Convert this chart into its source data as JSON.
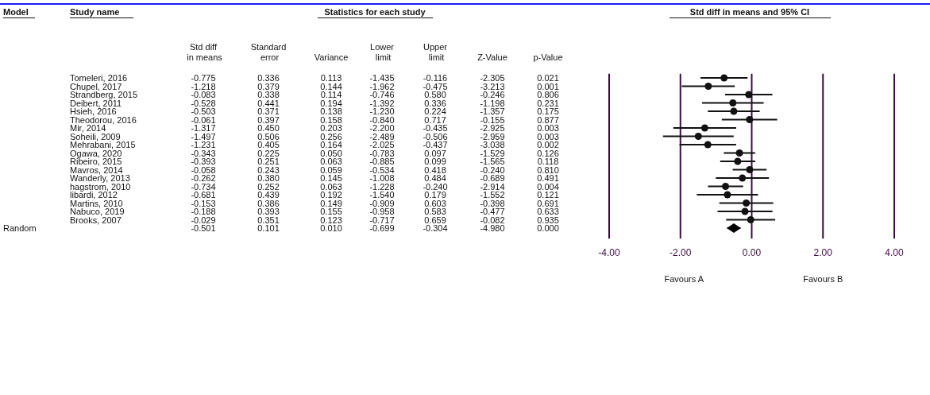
{
  "chart_data": [
    {
      "type": "heatmap",
      "title": "Statistics for each study",
      "annotations": [
        "Model",
        "Study name",
        "Random"
      ],
      "categories": [
        "Std diff in means",
        "Standard error",
        "Variance",
        "Lower limit",
        "Upper limit",
        "Z-Value",
        "p-Value"
      ],
      "y_categories": [
        "Tomeleri, 2016",
        "Chupel, 2017",
        "Strandberg, 2015",
        "Deibert, 2011",
        "Hsieh, 2016",
        "Theodorou, 2016",
        "Mir, 2014",
        "Soheili, 2009",
        "Mehrabani, 2015",
        "Ogawa, 2020",
        "Ribeiro, 2015",
        "Mavros, 2014",
        "Wanderly, 2013",
        "hagstrom, 2010",
        "libardi, 2012",
        "Martins, 2010",
        "Nabuco, 2019",
        "Brooks, 2007",
        null
      ],
      "cell_labels": [
        [
          "-0.775",
          "0.336",
          "0.113",
          "-1.435",
          "-0.116",
          "-2.305",
          "0.021"
        ],
        [
          "-1.218",
          "0.379",
          "0.144",
          "-1.962",
          "-0.475",
          "-3.213",
          "0.001"
        ],
        [
          "-0.083",
          "0.338",
          "0.114",
          "-0.746",
          "0.580",
          "-0.246",
          "0.806"
        ],
        [
          "-0.528",
          "0.441",
          "0.194",
          "-1.392",
          "0.336",
          "-1.198",
          "0.231"
        ],
        [
          "-0.503",
          "0.371",
          "0.138",
          "-1.230",
          "0.224",
          "-1.357",
          "0.175"
        ],
        [
          "-0.061",
          "0.397",
          "0.158",
          "-0.840",
          "0.717",
          "-0.155",
          "0.877"
        ],
        [
          "-1.317",
          "0.450",
          "0.203",
          "-2.200",
          "-0.435",
          "-2.925",
          "0.003"
        ],
        [
          "-1.497",
          "0.506",
          "0.256",
          "-2.489",
          "-0.506",
          "-2.959",
          "0.003"
        ],
        [
          "-1.231",
          "0.405",
          "0.164",
          "-2.025",
          "-0.437",
          "-3.038",
          "0.002"
        ],
        [
          "-0.343",
          "0.225",
          "0.050",
          "-0.783",
          "0.097",
          "-1.529",
          "0.126"
        ],
        [
          "-0.393",
          "0.251",
          "0.063",
          "-0.885",
          "0.099",
          "-1.565",
          "0.118"
        ],
        [
          "-0.058",
          "0.243",
          "0.059",
          "-0.534",
          "0.418",
          "-0.240",
          "0.810"
        ],
        [
          "-0.262",
          "0.380",
          "0.145",
          "-1.008",
          "0.484",
          "-0.689",
          "0.491"
        ],
        [
          "-0.734",
          "0.252",
          "0.063",
          "-1.228",
          "-0.240",
          "-2.914",
          "0.004"
        ],
        [
          "-0.681",
          "0.439",
          "0.192",
          "-1.540",
          "0.179",
          "-1.552",
          "0.121"
        ],
        [
          "-0.153",
          "0.386",
          "0.149",
          "-0.909",
          "0.603",
          "-0.398",
          "0.691"
        ],
        [
          "-0.188",
          "0.393",
          "0.155",
          "-0.958",
          "0.583",
          "-0.477",
          "0.633"
        ],
        [
          "-0.029",
          "0.351",
          "0.123",
          "-0.717",
          "0.659",
          "-0.082",
          "0.935"
        ],
        [
          "-0.501",
          "0.101",
          "0.010",
          "-0.699",
          "-0.304",
          "-4.980",
          "0.000"
        ]
      ],
      "cells": [
        [
          -0.775,
          0.336,
          0.113,
          -1.435,
          -0.116,
          -2.305,
          0.021
        ],
        [
          -1.218,
          0.379,
          0.144,
          -1.962,
          -0.475,
          -3.213,
          0.001
        ],
        [
          -0.083,
          0.338,
          0.114,
          -0.746,
          0.58,
          -0.246,
          0.806
        ],
        [
          -0.528,
          0.441,
          0.194,
          -1.392,
          0.336,
          -1.198,
          0.231
        ],
        [
          -0.503,
          0.371,
          0.138,
          -1.23,
          0.224,
          -1.357,
          0.175
        ],
        [
          -0.061,
          0.397,
          0.158,
          -0.84,
          0.717,
          -0.155,
          0.877
        ],
        [
          -1.317,
          0.45,
          0.203,
          -2.2,
          -0.435,
          -2.925,
          0.003
        ],
        [
          -1.497,
          0.506,
          0.256,
          -2.489,
          -0.506,
          -2.959,
          0.003
        ],
        [
          -1.231,
          0.405,
          0.164,
          -2.025,
          -0.437,
          -3.038,
          0.002
        ],
        [
          -0.343,
          0.225,
          0.05,
          -0.783,
          0.097,
          -1.529,
          0.126
        ],
        [
          -0.393,
          0.251,
          0.063,
          -0.885,
          0.099,
          -1.565,
          0.118
        ],
        [
          -0.058,
          0.243,
          0.059,
          -0.534,
          0.418,
          -0.24,
          0.81
        ],
        [
          -0.262,
          0.38,
          0.145,
          -1.008,
          0.484,
          -0.689,
          0.491
        ],
        [
          -0.734,
          0.252,
          0.063,
          -1.228,
          -0.24,
          -2.914,
          0.004
        ],
        [
          -0.681,
          0.439,
          0.192,
          -1.54,
          0.179,
          -1.552,
          0.121
        ],
        [
          -0.153,
          0.386,
          0.149,
          -0.909,
          0.603,
          -0.398,
          0.691
        ],
        [
          -0.188,
          0.393,
          0.155,
          -0.958,
          0.583,
          -0.477,
          0.633
        ],
        [
          -0.029,
          0.351,
          0.123,
          -0.717,
          0.659,
          -0.082,
          0.935
        ],
        [
          -0.501,
          0.101,
          0.01,
          -0.699,
          -0.304,
          -4.98,
          0.0
        ]
      ]
    },
    {
      "type": "scatter",
      "orientation": "horizontal",
      "title": "Std diff in means and 95% CI",
      "categories": [
        null,
        null,
        null,
        null,
        null,
        null,
        null,
        null,
        null,
        null,
        null,
        null,
        null,
        null,
        null,
        null,
        null,
        null,
        null
      ],
      "xlim": [
        -4,
        4
      ],
      "xticks": [
        {
          "value": -4,
          "label": "-4.00"
        },
        {
          "value": -2,
          "label": "-2.00"
        },
        {
          "value": 0,
          "label": "0.00"
        },
        {
          "value": 2,
          "label": "2.00"
        },
        {
          "value": 4,
          "label": "4.00"
        }
      ],
      "grid": "x",
      "annotations": [
        "Favours A",
        "Favours B"
      ],
      "series": [
        {
          "color": "#111111",
          "marker": "circle",
          "values": [
            -0.775,
            -1.218,
            -0.083,
            -0.528,
            -0.503,
            -0.061,
            -1.317,
            -1.497,
            -1.231,
            -0.343,
            -0.393,
            -0.058,
            -0.262,
            -0.734,
            -0.681,
            -0.153,
            -0.188,
            -0.029,
            null
          ],
          "errors": [
            [
              -1.435,
              -0.116
            ],
            [
              -1.962,
              -0.475
            ],
            [
              -0.746,
              0.58
            ],
            [
              -1.392,
              0.336
            ],
            [
              -1.23,
              0.224
            ],
            [
              -0.84,
              0.717
            ],
            [
              -2.2,
              -0.435
            ],
            [
              -2.489,
              -0.506
            ],
            [
              -2.025,
              -0.437
            ],
            [
              -0.783,
              0.097
            ],
            [
              -0.885,
              0.099
            ],
            [
              -0.534,
              0.418
            ],
            [
              -1.008,
              0.484
            ],
            [
              -1.228,
              -0.24
            ],
            [
              -1.54,
              0.179
            ],
            [
              -0.909,
              0.603
            ],
            [
              -0.958,
              0.583
            ],
            [
              -0.717,
              0.659
            ],
            null
          ]
        },
        {
          "color": "#000000",
          "marker": "diamond",
          "values": [
            null,
            null,
            null,
            null,
            null,
            null,
            null,
            null,
            null,
            null,
            null,
            null,
            null,
            null,
            null,
            null,
            null,
            null,
            -0.501
          ],
          "errors": [
            null,
            null,
            null,
            null,
            null,
            null,
            null,
            null,
            null,
            null,
            null,
            null,
            null,
            null,
            null,
            null,
            null,
            null,
            [
              -0.699,
              -0.304
            ]
          ]
        }
      ]
    }
  ]
}
